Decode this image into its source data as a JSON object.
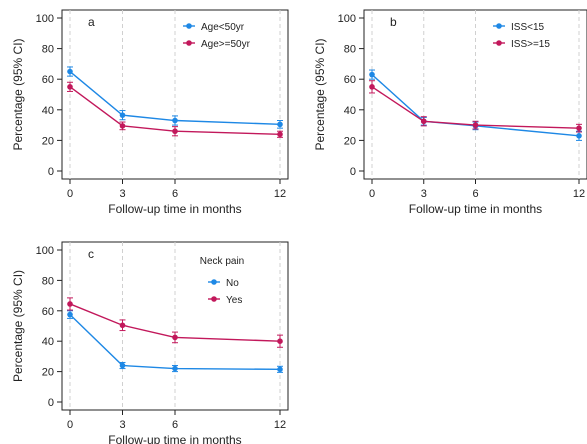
{
  "colors": {
    "series_blue": "#1e88e5",
    "series_red": "#c2185b",
    "axis": "#222222",
    "vgrid": "#d0d0d0"
  },
  "chart_data": [
    {
      "type": "line",
      "panel_label": "a",
      "xlabel": "Follow-up time in months",
      "ylabel": "Percentage (95% CI)",
      "x": [
        0,
        3,
        6,
        12
      ],
      "xticks": [
        "0",
        "3",
        "6",
        "12"
      ],
      "yticks": [
        "0",
        "20",
        "40",
        "60",
        "80",
        "100"
      ],
      "xlim": [
        0,
        12
      ],
      "ylim": [
        0,
        100
      ],
      "grid": "vertical dashed",
      "legend_title": "",
      "legend_position": "top-right",
      "series": [
        {
          "name": "Age<50yr",
          "color": "#1e88e5",
          "values": [
            65,
            36.5,
            33,
            30.5
          ],
          "ci_low": [
            62,
            33.5,
            30,
            28
          ],
          "ci_high": [
            68,
            39.5,
            36,
            33
          ]
        },
        {
          "name": "Age>=50yr",
          "color": "#c2185b",
          "values": [
            55,
            29.5,
            26,
            24
          ],
          "ci_low": [
            52,
            27,
            23,
            22
          ],
          "ci_high": [
            58,
            32,
            29,
            26
          ]
        }
      ]
    },
    {
      "type": "line",
      "panel_label": "b",
      "xlabel": "Follow-up time in months",
      "ylabel": "Percentage (95% CI)",
      "x": [
        0,
        3,
        6,
        12
      ],
      "xticks": [
        "0",
        "3",
        "6",
        "12"
      ],
      "yticks": [
        "0",
        "20",
        "40",
        "60",
        "80",
        "100"
      ],
      "xlim": [
        0,
        12
      ],
      "ylim": [
        0,
        100
      ],
      "grid": "vertical dashed",
      "legend_title": "",
      "legend_position": "top-right",
      "series": [
        {
          "name": "ISS<15",
          "color": "#1e88e5",
          "values": [
            63,
            32.5,
            29.5,
            23
          ],
          "ci_low": [
            60,
            30,
            27,
            20
          ],
          "ci_high": [
            66,
            35,
            32,
            26
          ]
        },
        {
          "name": "ISS>=15",
          "color": "#c2185b",
          "values": [
            55,
            32.5,
            30,
            28
          ],
          "ci_low": [
            51,
            29.5,
            27.5,
            25.5
          ],
          "ci_high": [
            59,
            35.5,
            32.5,
            30.5
          ]
        }
      ]
    },
    {
      "type": "line",
      "panel_label": "c",
      "xlabel": "Follow-up time in months",
      "ylabel": "Percentage (95% CI)",
      "x": [
        0,
        3,
        6,
        12
      ],
      "xticks": [
        "0",
        "3",
        "6",
        "12"
      ],
      "yticks": [
        "0",
        "20",
        "40",
        "60",
        "80",
        "100"
      ],
      "xlim": [
        0,
        12
      ],
      "ylim": [
        0,
        100
      ],
      "grid": "vertical dashed",
      "legend_title": "Neck pain",
      "legend_position": "top-right",
      "series": [
        {
          "name": "No",
          "color": "#1e88e5",
          "values": [
            57.5,
            24,
            22,
            21.5
          ],
          "ci_low": [
            55,
            22,
            20,
            19.5
          ],
          "ci_high": [
            60,
            26,
            24,
            23.5
          ]
        },
        {
          "name": "Yes",
          "color": "#c2185b",
          "values": [
            64.5,
            50.5,
            42.5,
            40
          ],
          "ci_low": [
            60.5,
            47,
            39,
            36
          ],
          "ci_high": [
            68.5,
            54,
            46,
            44
          ]
        }
      ]
    }
  ]
}
